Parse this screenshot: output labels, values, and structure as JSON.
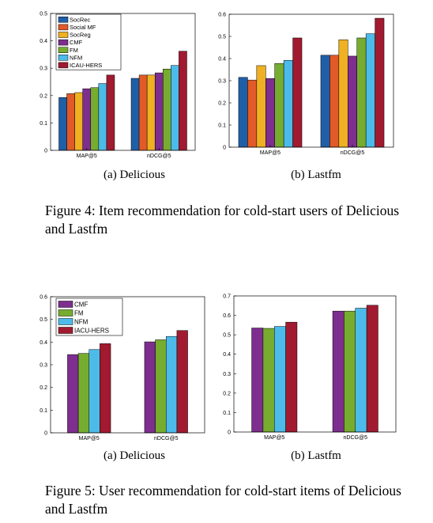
{
  "colors": {
    "SocRec": "#1f5fa8",
    "Social MF": "#e15a27",
    "SocReg": "#efb121",
    "CMF": "#7d2e8e",
    "FM": "#76ac2f",
    "NFM": "#4cbbe9",
    "ICAU-HERS": "#a11a30",
    "IACU-HERS": "#a11a30"
  },
  "figures": [
    {
      "caption": "Figure 4: Item recommendation for cold-start users of Delicious and Lastfm"
    },
    {
      "caption": "Figure 5: User recommendation for cold-start items of Delicious and Lastfm"
    }
  ],
  "chart_data": [
    {
      "type": "bar",
      "subcaption": "(a) Delicious",
      "categories": [
        "MAP@5",
        "nDCG@5"
      ],
      "ylim": [
        0,
        0.5
      ],
      "yticks": [
        0,
        0.1,
        0.2,
        0.3,
        0.4,
        0.5
      ],
      "legend": "top-left",
      "series": [
        {
          "name": "SocRec",
          "values": [
            0.193,
            0.263
          ]
        },
        {
          "name": "Social MF",
          "values": [
            0.207,
            0.275
          ]
        },
        {
          "name": "SocReg",
          "values": [
            0.211,
            0.275
          ]
        },
        {
          "name": "CMF",
          "values": [
            0.225,
            0.283
          ]
        },
        {
          "name": "FM",
          "values": [
            0.229,
            0.297
          ]
        },
        {
          "name": "NFM",
          "values": [
            0.244,
            0.31
          ]
        },
        {
          "name": "ICAU-HERS",
          "values": [
            0.275,
            0.362
          ]
        }
      ]
    },
    {
      "type": "bar",
      "subcaption": "(b) Lastfm",
      "categories": [
        "MAP@5",
        "nDCG@5"
      ],
      "ylim": [
        0,
        0.6
      ],
      "yticks": [
        0,
        0.1,
        0.2,
        0.3,
        0.4,
        0.5,
        0.6
      ],
      "series": [
        {
          "name": "SocRec",
          "values": [
            0.315,
            0.415
          ]
        },
        {
          "name": "Social MF",
          "values": [
            0.303,
            0.415
          ]
        },
        {
          "name": "SocReg",
          "values": [
            0.368,
            0.485
          ]
        },
        {
          "name": "CMF",
          "values": [
            0.31,
            0.411
          ]
        },
        {
          "name": "FM",
          "values": [
            0.378,
            0.493
          ]
        },
        {
          "name": "NFM",
          "values": [
            0.392,
            0.512
          ]
        },
        {
          "name": "ICAU-HERS",
          "values": [
            0.493,
            0.582
          ]
        }
      ]
    },
    {
      "type": "bar",
      "subcaption": "(a) Delicious",
      "categories": [
        "MAP@5",
        "nDCG@5"
      ],
      "ylim": [
        0,
        0.6
      ],
      "yticks": [
        0,
        0.1,
        0.2,
        0.3,
        0.4,
        0.5,
        0.6
      ],
      "legend": "top-left",
      "series": [
        {
          "name": "CMF",
          "values": [
            0.345,
            0.401
          ]
        },
        {
          "name": "FM",
          "values": [
            0.35,
            0.41
          ]
        },
        {
          "name": "NFM",
          "values": [
            0.367,
            0.425
          ]
        },
        {
          "name": "IACU-HERS",
          "values": [
            0.393,
            0.451
          ]
        }
      ]
    },
    {
      "type": "bar",
      "subcaption": "(b) Lastfm",
      "categories": [
        "MAP@5",
        "nDCG@5"
      ],
      "ylim": [
        0,
        0.7
      ],
      "yticks": [
        0,
        0.1,
        0.2,
        0.3,
        0.4,
        0.5,
        0.6,
        0.7
      ],
      "series": [
        {
          "name": "CMF",
          "values": [
            0.535,
            0.622
          ]
        },
        {
          "name": "FM",
          "values": [
            0.533,
            0.622
          ]
        },
        {
          "name": "NFM",
          "values": [
            0.543,
            0.637
          ]
        },
        {
          "name": "IACU-HERS",
          "values": [
            0.565,
            0.652
          ]
        }
      ]
    }
  ]
}
